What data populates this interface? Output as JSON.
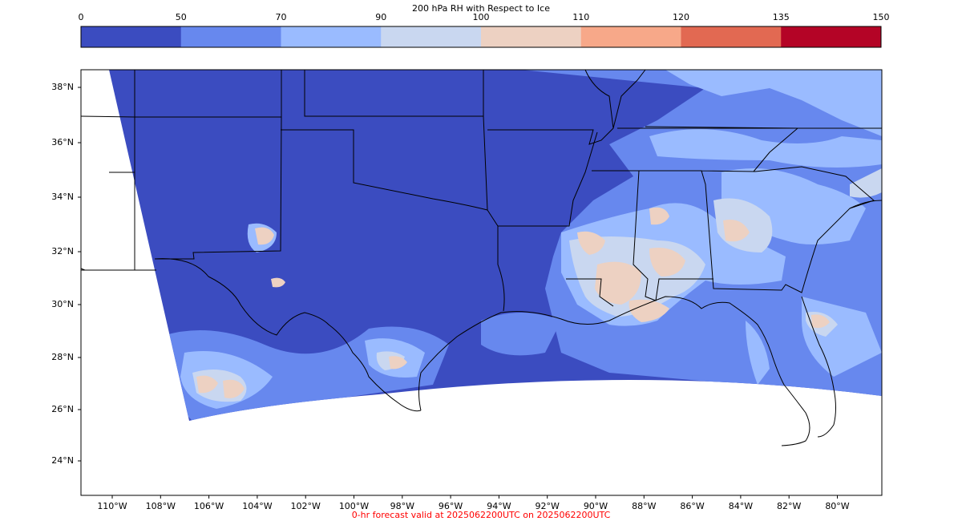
{
  "colorbar": {
    "title": "200 hPa RH with Respect to Ice",
    "ticks": [
      "0",
      "50",
      "70",
      "90",
      "100",
      "110",
      "120",
      "135",
      "150"
    ],
    "bins": [
      {
        "from": 0,
        "to": 50,
        "color": "#3b4cc0"
      },
      {
        "from": 50,
        "to": 70,
        "color": "#6788ee"
      },
      {
        "from": 70,
        "to": 90,
        "color": "#9abbff"
      },
      {
        "from": 90,
        "to": 100,
        "color": "#c9d7f0"
      },
      {
        "from": 100,
        "to": 110,
        "color": "#edd1c2"
      },
      {
        "from": 110,
        "to": 120,
        "color": "#f7a889"
      },
      {
        "from": 120,
        "to": 135,
        "color": "#e26952"
      },
      {
        "from": 135,
        "to": 150,
        "color": "#b40426"
      }
    ]
  },
  "map": {
    "projection": "lambert-conformal",
    "region": "South-central and southeastern United States, Gulf of Mexico coast",
    "lat_labels": [
      "38°N",
      "36°N",
      "34°N",
      "32°N",
      "30°N",
      "28°N",
      "26°N",
      "24°N"
    ],
    "lon_labels": [
      "110°W",
      "108°W",
      "106°W",
      "104°W",
      "102°W",
      "100°W",
      "98°W",
      "96°W",
      "94°W",
      "92°W",
      "90°W",
      "88°W",
      "86°W",
      "84°W",
      "82°W",
      "80°W"
    ],
    "field_colors": {
      "dry": "#3b4cc0",
      "low": "#6788ee",
      "mid": "#9abbff",
      "high": "#c9d7f0",
      "sat": "#edd1c2"
    }
  },
  "footer": {
    "text": "0-hr forecast valid at 2025062200UTC on 2025062200UTC",
    "color": "#ff0000"
  }
}
